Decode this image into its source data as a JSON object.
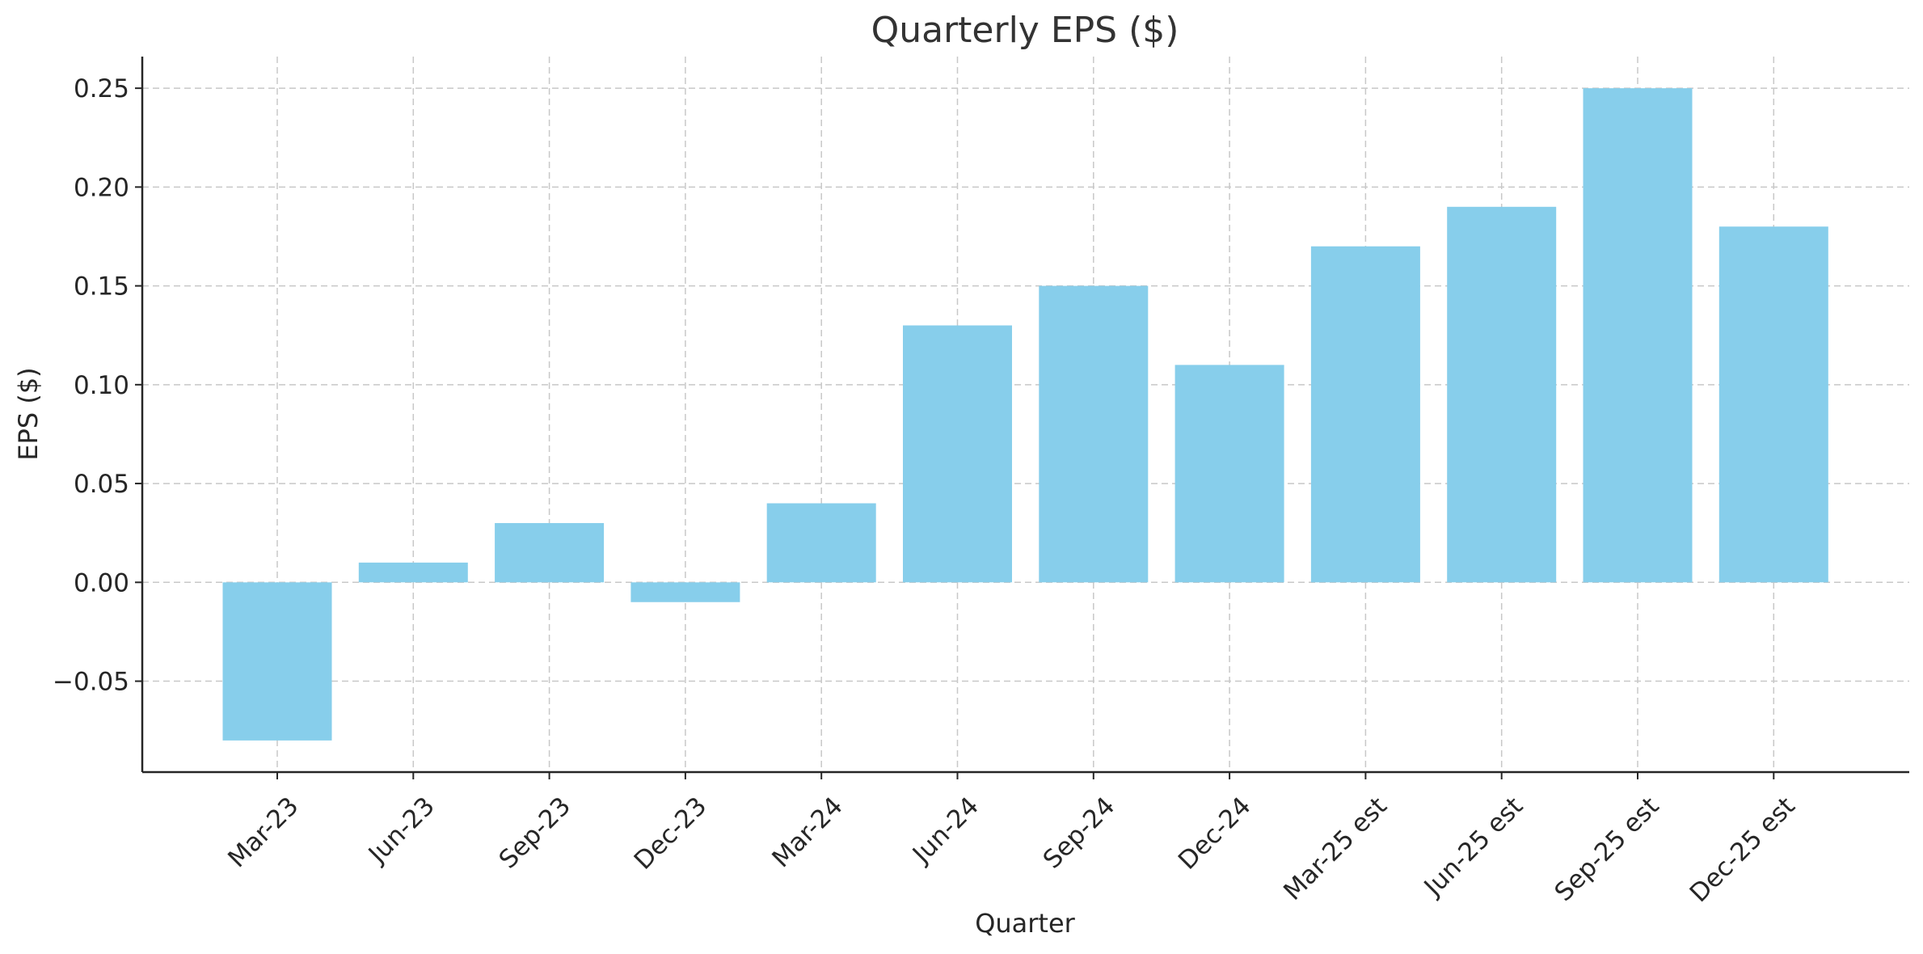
{
  "chart_data": {
    "type": "bar",
    "title": "Quarterly EPS ($)",
    "xlabel": "Quarter",
    "ylabel": "EPS ($)",
    "categories": [
      "Mar-23",
      "Jun-23",
      "Sep-23",
      "Dec-23",
      "Mar-24",
      "Jun-24",
      "Sep-24",
      "Dec-24",
      "Mar-25 est",
      "Jun-25 est",
      "Sep-25 est",
      "Dec-25 est"
    ],
    "values": [
      -0.08,
      0.01,
      0.03,
      -0.01,
      0.04,
      0.13,
      0.15,
      0.11,
      0.17,
      0.19,
      0.25,
      0.18
    ],
    "ylim": [
      -0.096,
      0.266
    ],
    "yticks": [
      -0.05,
      0.0,
      0.05,
      0.1,
      0.15,
      0.2,
      0.25
    ],
    "ytick_labels": [
      "−0.05",
      "0.00",
      "0.05",
      "0.10",
      "0.15",
      "0.20",
      "0.25"
    ],
    "grid": true,
    "bar_color": "#87ceeb",
    "legend": "none"
  }
}
